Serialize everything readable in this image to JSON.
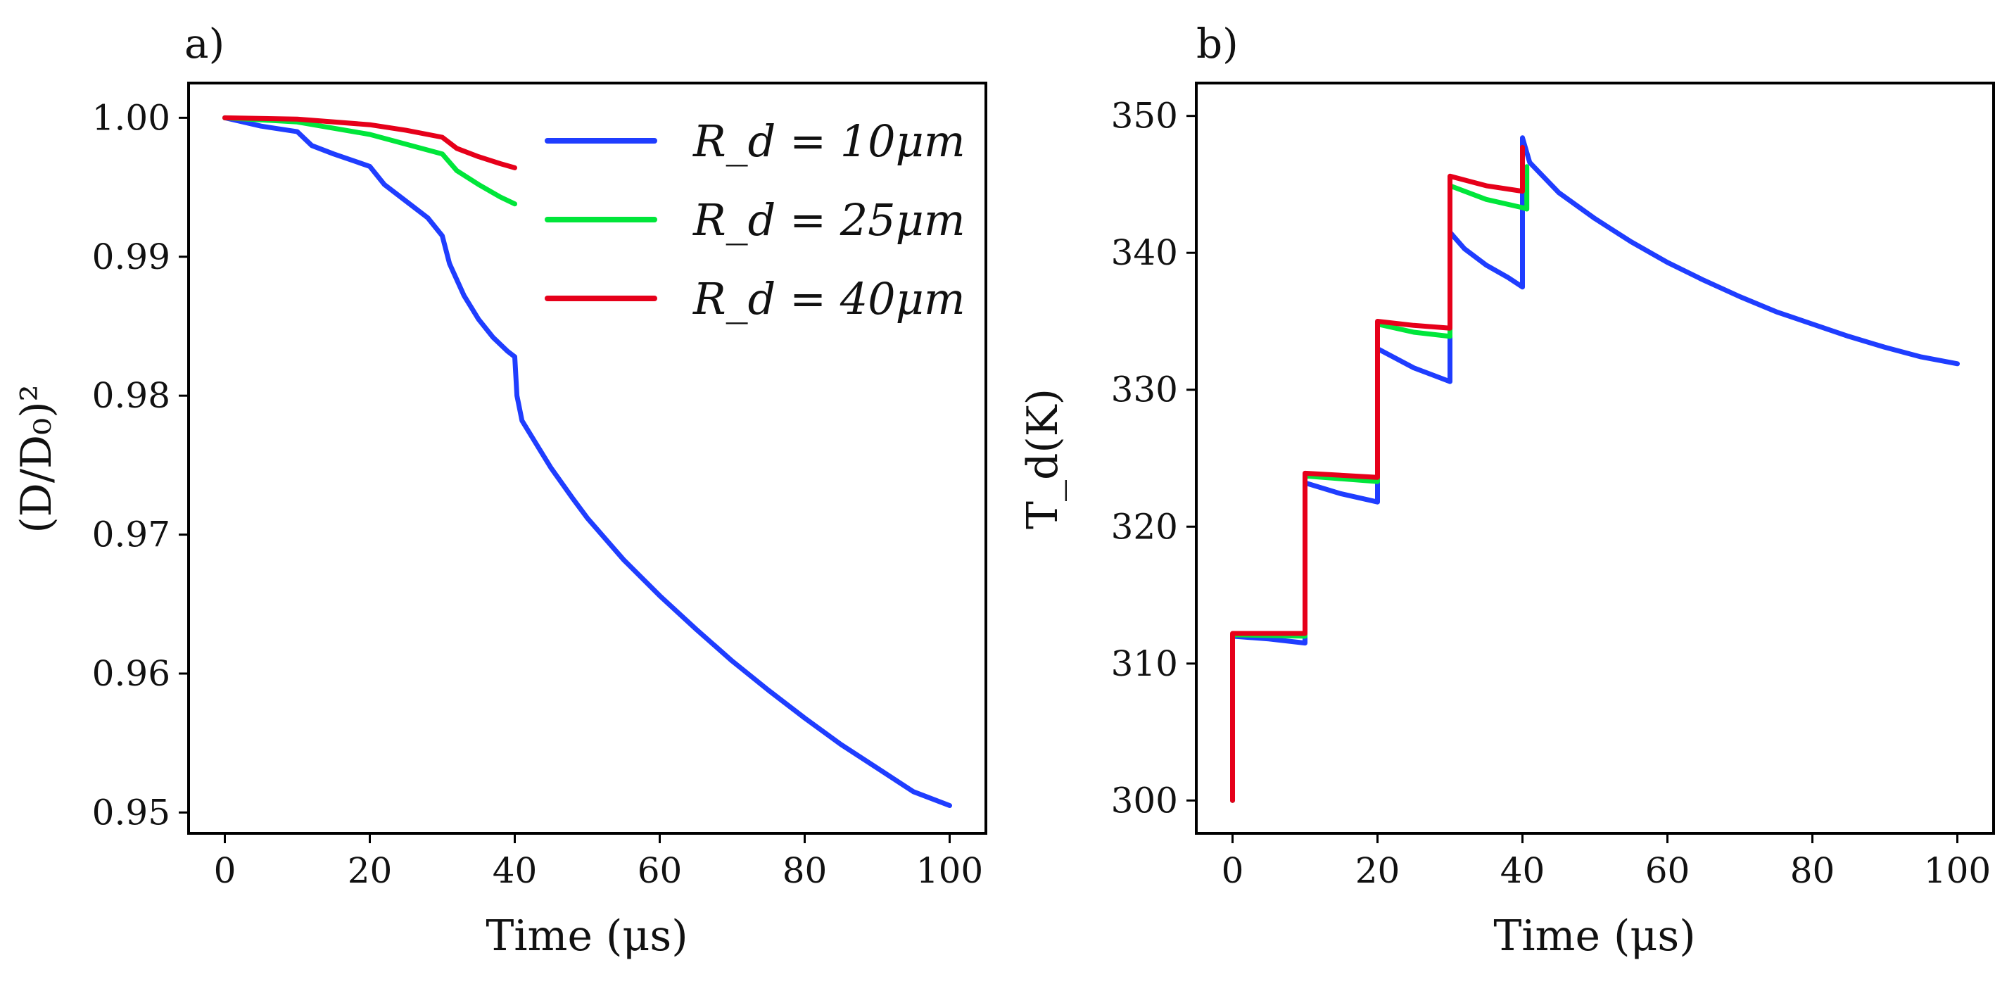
{
  "chart_data": [
    {
      "panel_label": "a)",
      "type": "line",
      "xlabel": "Time (μs)",
      "ylabel": "(D/D₀)²",
      "xlim": [
        -5,
        105
      ],
      "ylim": [
        0.9485,
        1.0025
      ],
      "xticks": [
        0,
        20,
        40,
        60,
        80,
        100
      ],
      "xtick_labels": [
        "0",
        "20",
        "40",
        "60",
        "80",
        "100"
      ],
      "yticks": [
        0.95,
        0.96,
        0.97,
        0.98,
        0.99,
        1.0
      ],
      "ytick_labels": [
        "0.95",
        "0.96",
        "0.97",
        "0.98",
        "0.99",
        "1.00"
      ],
      "legend": {
        "position": "top-right",
        "entries": [
          "R_d = 10μm",
          "R_d = 25μm",
          "R_d = 40μm"
        ]
      },
      "series": [
        {
          "name": "R_d = 10μm",
          "color": "#1f3dff",
          "points": [
            [
              0,
              1.0
            ],
            [
              5,
              0.9994
            ],
            [
              10,
              0.999
            ],
            [
              12,
              0.998
            ],
            [
              15,
              0.9974
            ],
            [
              20,
              0.9965
            ],
            [
              22,
              0.9952
            ],
            [
              25,
              0.994
            ],
            [
              28,
              0.9928
            ],
            [
              30,
              0.9915
            ],
            [
              31,
              0.9895
            ],
            [
              33,
              0.9872
            ],
            [
              35,
              0.9855
            ],
            [
              37,
              0.9842
            ],
            [
              39,
              0.9832
            ],
            [
              40,
              0.9828
            ],
            [
              40.3,
              0.98
            ],
            [
              41,
              0.9782
            ],
            [
              43,
              0.9765
            ],
            [
              45,
              0.9748
            ],
            [
              48,
              0.9726
            ],
            [
              50,
              0.9712
            ],
            [
              55,
              0.9682
            ],
            [
              60,
              0.9656
            ],
            [
              65,
              0.9632
            ],
            [
              70,
              0.9609
            ],
            [
              75,
              0.9588
            ],
            [
              80,
              0.9568
            ],
            [
              85,
              0.9549
            ],
            [
              90,
              0.9532
            ],
            [
              95,
              0.9515
            ],
            [
              100,
              0.9505
            ]
          ]
        },
        {
          "name": "R_d = 25μm",
          "color": "#00e63a",
          "points": [
            [
              0,
              1.0
            ],
            [
              10,
              0.9997
            ],
            [
              20,
              0.9988
            ],
            [
              25,
              0.9981
            ],
            [
              30,
              0.9974
            ],
            [
              32,
              0.9962
            ],
            [
              35,
              0.9952
            ],
            [
              38,
              0.9943
            ],
            [
              40,
              0.9938
            ]
          ]
        },
        {
          "name": "R_d = 40μm",
          "color": "#e6001a",
          "points": [
            [
              0,
              1.0
            ],
            [
              10,
              0.9999
            ],
            [
              20,
              0.9995
            ],
            [
              25,
              0.9991
            ],
            [
              30,
              0.9986
            ],
            [
              32,
              0.9978
            ],
            [
              35,
              0.9972
            ],
            [
              38,
              0.9967
            ],
            [
              40,
              0.9964
            ]
          ]
        }
      ]
    },
    {
      "panel_label": "b)",
      "type": "line",
      "xlabel": "Time (μs)",
      "ylabel": "T_d(K)",
      "xlim": [
        -5,
        105
      ],
      "ylim": [
        297.6,
        352.4
      ],
      "xticks": [
        0,
        20,
        40,
        60,
        80,
        100
      ],
      "xtick_labels": [
        "0",
        "20",
        "40",
        "60",
        "80",
        "100"
      ],
      "yticks": [
        300,
        310,
        320,
        330,
        340,
        350
      ],
      "ytick_labels": [
        "300",
        "310",
        "320",
        "330",
        "340",
        "350"
      ],
      "series": [
        {
          "name": "R_d = 10μm",
          "color": "#1f3dff",
          "points": [
            [
              0,
              300
            ],
            [
              0,
              312
            ],
            [
              5,
              311.8
            ],
            [
              10,
              311.5
            ],
            [
              10,
              323.2
            ],
            [
              15,
              322.4
            ],
            [
              20,
              321.8
            ],
            [
              20,
              333
            ],
            [
              25,
              331.6
            ],
            [
              30,
              330.6
            ],
            [
              30,
              341.5
            ],
            [
              32,
              340.3
            ],
            [
              35,
              339.1
            ],
            [
              38,
              338.2
            ],
            [
              40,
              337.5
            ],
            [
              40,
              348.4
            ],
            [
              41,
              346.6
            ],
            [
              45,
              344.4
            ],
            [
              50,
              342.5
            ],
            [
              55,
              340.8
            ],
            [
              60,
              339.3
            ],
            [
              65,
              338
            ],
            [
              70,
              336.8
            ],
            [
              75,
              335.7
            ],
            [
              80,
              334.8
            ],
            [
              85,
              333.9
            ],
            [
              90,
              333.1
            ],
            [
              95,
              332.4
            ],
            [
              100,
              331.9
            ]
          ]
        },
        {
          "name": "R_d = 25μm",
          "color": "#00e63a",
          "points": [
            [
              0,
              300
            ],
            [
              0,
              312.1
            ],
            [
              10,
              312
            ],
            [
              10,
              323.7
            ],
            [
              20,
              323.3
            ],
            [
              20,
              334.8
            ],
            [
              25,
              334.2
            ],
            [
              30,
              333.9
            ],
            [
              30,
              344.9
            ],
            [
              35,
              343.9
            ],
            [
              40,
              343.3
            ],
            [
              40.6,
              343.2
            ],
            [
              40.6,
              346.3
            ]
          ]
        },
        {
          "name": "R_d = 40μm",
          "color": "#e6001a",
          "points": [
            [
              0,
              300
            ],
            [
              0,
              312.2
            ],
            [
              10,
              312.2
            ],
            [
              10,
              323.9
            ],
            [
              20,
              323.6
            ],
            [
              20,
              335
            ],
            [
              25,
              334.7
            ],
            [
              30,
              334.5
            ],
            [
              30,
              345.6
            ],
            [
              35,
              344.9
            ],
            [
              40,
              344.5
            ],
            [
              40,
              347.7
            ]
          ]
        }
      ]
    }
  ]
}
